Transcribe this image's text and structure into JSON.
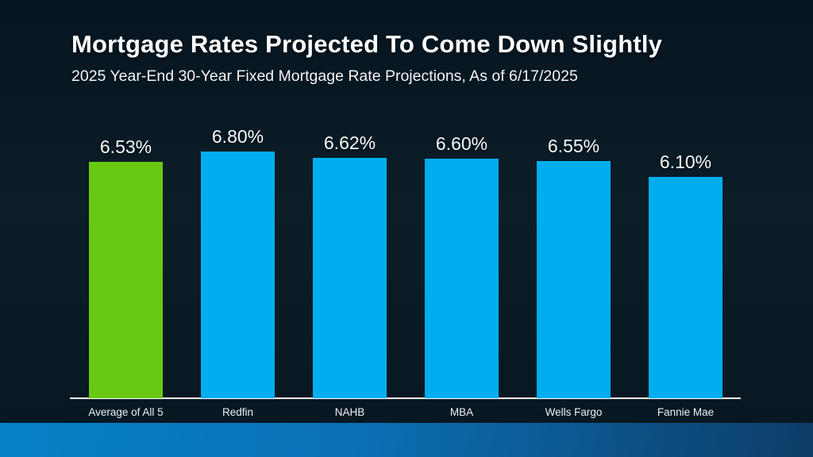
{
  "chart_data": {
    "type": "bar",
    "title": "Mortgage Rates Projected To Come Down Slightly",
    "subtitle": "2025 Year-End 30-Year Fixed Mortgage Rate Projections, As of 6/17/2025",
    "categories": [
      "Average of All 5",
      "Redfin",
      "NAHB",
      "MBA",
      "Wells Fargo",
      "Fannie Mae"
    ],
    "values": [
      6.53,
      6.8,
      6.62,
      6.6,
      6.55,
      6.1
    ],
    "value_labels": [
      "6.53%",
      "6.80%",
      "6.62%",
      "6.60%",
      "6.55%",
      "6.10%"
    ],
    "bar_colors": [
      "#69C814",
      "#00AEEF",
      "#00AEEF",
      "#00AEEF",
      "#00AEEF",
      "#00AEEF"
    ],
    "highlight_color": "#69C814",
    "default_color": "#00AEEF",
    "xlabel": "",
    "ylabel": "",
    "ylim": [
      0,
      7.0
    ],
    "grid": false,
    "legend": false,
    "axis_line_color": "#ffffff"
  },
  "colors": {
    "background": "#0B1D27",
    "footer_gradient_left": "#0682C8",
    "footer_gradient_mid": "#0B6FB4",
    "footer_gradient_right": "#0D3C67",
    "text": "#FFFFFF"
  }
}
